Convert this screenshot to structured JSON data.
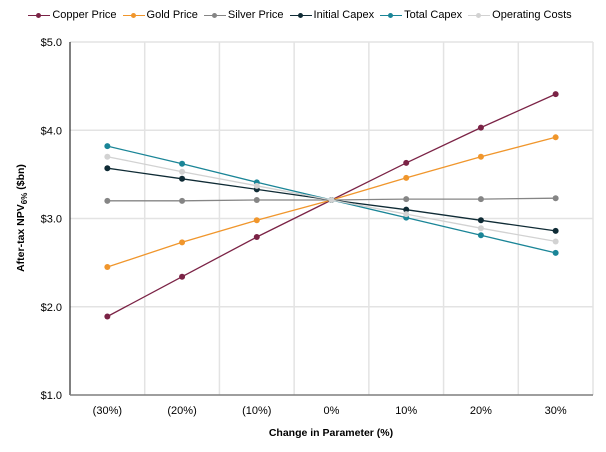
{
  "chart_data": {
    "type": "line",
    "title": "",
    "xlabel": "Change in Parameter (%)",
    "ylabel": "After-tax NPV",
    "ylabel_subscript": "6%",
    "ylabel_suffix": " ($bn)",
    "categories": [
      "(30%)",
      "(20%)",
      "(10%)",
      "0%",
      "10%",
      "20%",
      "30%"
    ],
    "ylim": [
      1.0,
      5.0
    ],
    "yticks": [
      1.0,
      2.0,
      3.0,
      4.0,
      5.0
    ],
    "ytick_labels": [
      "$1.0",
      "$2.0",
      "$3.0",
      "$4.0",
      "$5.0"
    ],
    "grid": true,
    "legend_position": "top",
    "series": [
      {
        "name": "Copper Price",
        "color": "#7b2346",
        "values": [
          1.89,
          2.34,
          2.79,
          3.21,
          3.63,
          4.03,
          4.41
        ]
      },
      {
        "name": "Gold Price",
        "color": "#f0962c",
        "values": [
          2.45,
          2.73,
          2.98,
          3.21,
          3.46,
          3.7,
          3.92
        ]
      },
      {
        "name": "Silver Price",
        "color": "#858585",
        "values": [
          3.2,
          3.2,
          3.21,
          3.21,
          3.22,
          3.22,
          3.23
        ]
      },
      {
        "name": "Initial Capex",
        "color": "#0f2b35",
        "values": [
          3.57,
          3.45,
          3.33,
          3.21,
          3.1,
          2.98,
          2.86
        ]
      },
      {
        "name": "Total Capex",
        "color": "#1a8597",
        "values": [
          3.82,
          3.62,
          3.41,
          3.21,
          3.01,
          2.81,
          2.61
        ]
      },
      {
        "name": "Operating Costs",
        "color": "#d2d2d2",
        "values": [
          3.7,
          3.53,
          3.37,
          3.21,
          3.05,
          2.89,
          2.74
        ]
      }
    ]
  }
}
